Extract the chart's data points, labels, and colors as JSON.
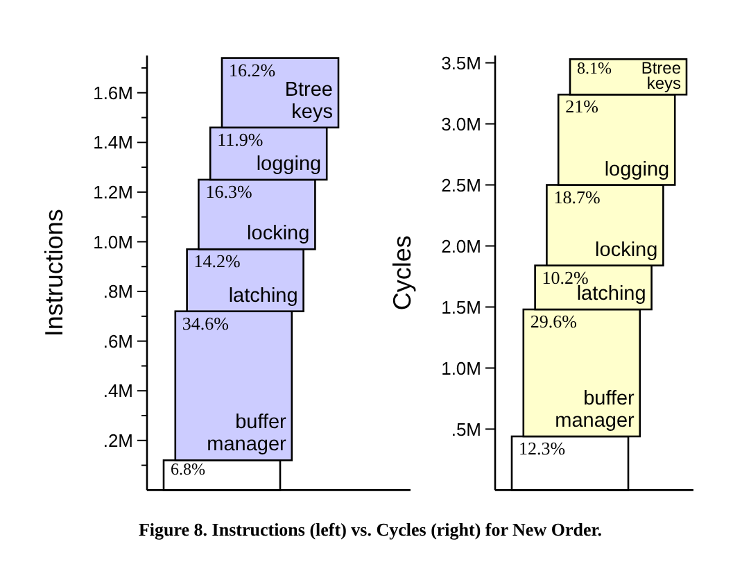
{
  "chart_data": [
    {
      "type": "bar",
      "stacked": true,
      "categories": [
        null
      ],
      "ylabel": "Instructions",
      "ylim": [
        0,
        1.75
      ],
      "yticks": [
        {
          "value": 0.1,
          "label": null
        },
        {
          "value": 0.2,
          "label": ".2M"
        },
        {
          "value": 0.3,
          "label": null
        },
        {
          "value": 0.4,
          "label": ".4M"
        },
        {
          "value": 0.5,
          "label": null
        },
        {
          "value": 0.6,
          "label": ".6M"
        },
        {
          "value": 0.7,
          "label": null
        },
        {
          "value": 0.8,
          "label": ".8M"
        },
        {
          "value": 0.9,
          "label": null
        },
        {
          "value": 1.0,
          "label": "1.0M"
        },
        {
          "value": 1.1,
          "label": null
        },
        {
          "value": 1.2,
          "label": "1.2M"
        },
        {
          "value": 1.3,
          "label": null
        },
        {
          "value": 1.4,
          "label": "1.4M"
        },
        {
          "value": 1.5,
          "label": null
        },
        {
          "value": 1.6,
          "label": "1.6M"
        },
        {
          "value": 1.7,
          "label": null
        }
      ],
      "series": [
        {
          "color": "#ffffff",
          "values": [
            0.12
          ]
        },
        {
          "name": "buffer manager",
          "color": "#ccccff",
          "values": [
            0.6
          ]
        },
        {
          "name": "latching",
          "color": "#ccccff",
          "values": [
            0.25
          ]
        },
        {
          "name": "locking",
          "color": "#ccccff",
          "values": [
            0.28
          ]
        },
        {
          "name": "logging",
          "color": "#ccccff",
          "values": [
            0.21
          ]
        },
        {
          "name": "Btree keys",
          "color": "#ccccff",
          "values": [
            0.28
          ]
        }
      ],
      "annotations": [
        {
          "text": "6.8%",
          "y": 0.12
        },
        {
          "text": "34.6%",
          "y": 0.72
        },
        {
          "text": "14.2%",
          "y": 0.97
        },
        {
          "text": "16.3%",
          "y": 1.25
        },
        {
          "text": "11.9%",
          "y": 1.46
        },
        {
          "text": "16.2%",
          "y": 1.74
        },
        "Figure 8. Instructions (left) vs. Cycles (right) for New Order."
      ]
    },
    {
      "type": "bar",
      "stacked": true,
      "categories": [
        null
      ],
      "ylabel": "Cycles",
      "ylim": [
        0,
        3.56
      ],
      "yticks": [
        {
          "value": 0.5,
          "label": ".5M"
        },
        {
          "value": 1.0,
          "label": "1.0M"
        },
        {
          "value": 1.5,
          "label": "1.5M"
        },
        {
          "value": 2.0,
          "label": "2.0M"
        },
        {
          "value": 2.5,
          "label": "2.5M"
        },
        {
          "value": 3.0,
          "label": "3.0M"
        },
        {
          "value": 3.5,
          "label": "3.5M"
        }
      ],
      "series": [
        {
          "color": "#ffffff",
          "values": [
            0.44
          ]
        },
        {
          "name": "buffer manager",
          "color": "#ffffcc",
          "values": [
            1.04
          ]
        },
        {
          "name": "latching",
          "color": "#ffffcc",
          "values": [
            0.36
          ]
        },
        {
          "name": "locking",
          "color": "#ffffcc",
          "values": [
            0.66
          ]
        },
        {
          "name": "logging",
          "color": "#ffffcc",
          "values": [
            0.74
          ]
        },
        {
          "name": "Btree keys",
          "color": "#ffffcc",
          "values": [
            0.29
          ]
        }
      ],
      "annotations": [
        {
          "text": "12.3%",
          "y": 0.44
        },
        {
          "text": "29.6%",
          "y": 1.48
        },
        {
          "text": "10.2%",
          "y": 1.84
        },
        {
          "text": "18.7%",
          "y": 2.5
        },
        {
          "text": "21%",
          "y": 3.24
        },
        {
          "text": "8.1%",
          "y": 3.53
        }
      ]
    }
  ]
}
